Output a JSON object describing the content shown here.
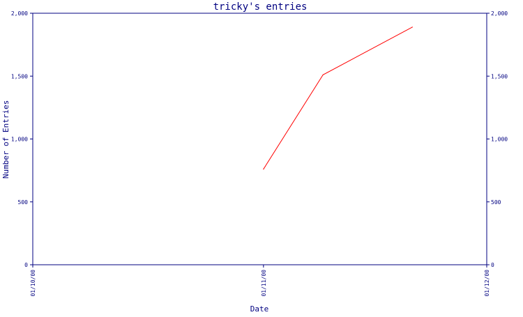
{
  "chart_data": {
    "type": "line",
    "title": "tricky's entries",
    "xlabel": "Date",
    "ylabel": "Number of Entries",
    "x_ticks": [
      "01/10/00",
      "01/11/00",
      "01/12/00"
    ],
    "y_ticks": [
      "0",
      "500",
      "1,000",
      "1,500",
      "2,000"
    ],
    "y_ticks_right": [
      "0",
      "500",
      "1,000",
      "1,500",
      "2,000"
    ],
    "ylim": [
      0,
      2000
    ],
    "xlim": [
      "2000-10-01",
      "2000-12-01"
    ],
    "series": [
      {
        "color": "#ff0000",
        "points": [
          {
            "x": "2000-11-01",
            "y": 760
          },
          {
            "x": "2000-11-09",
            "y": 1510
          },
          {
            "x": "2000-11-21",
            "y": 1890
          }
        ]
      }
    ],
    "grid": false,
    "axis_color": "#000080"
  }
}
